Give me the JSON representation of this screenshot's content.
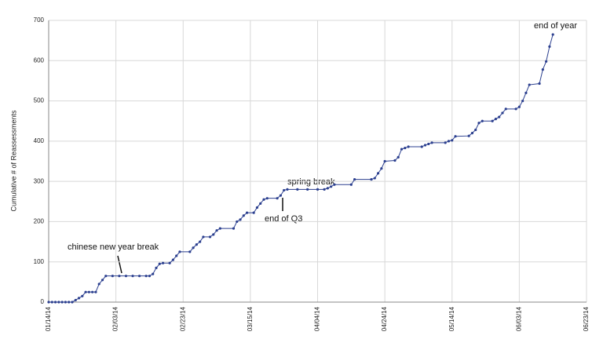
{
  "chart_data": {
    "type": "line",
    "y_label": "Cumulative # of Reassessments",
    "x": [
      "01/14/14",
      "01/15/14",
      "01/16/14",
      "01/17/14",
      "01/18/14",
      "01/19/14",
      "01/20/14",
      "01/21/14",
      "01/22/14",
      "01/23/14",
      "01/24/14",
      "01/25/14",
      "01/26/14",
      "01/27/14",
      "01/28/14",
      "01/29/14",
      "01/30/14",
      "01/31/14",
      "02/02/14",
      "02/04/14",
      "02/06/14",
      "02/08/14",
      "02/10/14",
      "02/12/14",
      "02/13/14",
      "02/14/14",
      "02/15/14",
      "02/16/14",
      "02/17/14",
      "02/19/14",
      "02/20/14",
      "02/21/14",
      "02/22/14",
      "02/25/14",
      "02/26/14",
      "02/27/14",
      "02/28/14",
      "03/01/14",
      "03/03/14",
      "03/04/14",
      "03/05/14",
      "03/06/14",
      "03/10/14",
      "03/11/14",
      "03/12/14",
      "03/13/14",
      "03/14/14",
      "03/16/14",
      "03/17/14",
      "03/18/14",
      "03/19/14",
      "03/20/14",
      "03/23/14",
      "03/24/14",
      "03/25/14",
      "03/26/14",
      "03/29/14",
      "04/01/14",
      "04/04/14",
      "04/06/14",
      "04/07/14",
      "04/08/14",
      "04/09/14",
      "04/14/14",
      "04/15/14",
      "04/20/14",
      "04/21/14",
      "04/22/14",
      "04/23/14",
      "04/24/14",
      "04/27/14",
      "04/28/14",
      "04/29/14",
      "04/30/14",
      "05/01/14",
      "05/05/14",
      "05/06/14",
      "05/07/14",
      "05/08/14",
      "05/12/14",
      "05/13/14",
      "05/14/14",
      "05/15/14",
      "05/19/14",
      "05/20/14",
      "05/21/14",
      "05/22/14",
      "05/23/14",
      "05/26/14",
      "05/27/14",
      "05/28/14",
      "05/29/14",
      "05/30/14",
      "06/02/14",
      "06/03/14",
      "06/04/14",
      "06/05/14",
      "06/06/14",
      "06/09/14",
      "06/10/14",
      "06/11/14",
      "06/12/14",
      "06/13/14"
    ],
    "series": [
      {
        "color": "#2b3f8f",
        "values": [
          0,
          0,
          0,
          0,
          0,
          0,
          0,
          0,
          5,
          10,
          15,
          25,
          25,
          25,
          25,
          45,
          55,
          65,
          65,
          65,
          65,
          65,
          65,
          65,
          65,
          70,
          85,
          95,
          97,
          97,
          105,
          115,
          125,
          125,
          135,
          143,
          150,
          162,
          162,
          168,
          178,
          183,
          183,
          200,
          205,
          215,
          222,
          222,
          235,
          245,
          255,
          258,
          258,
          265,
          278,
          280,
          280,
          280,
          280,
          280,
          283,
          287,
          292,
          292,
          305,
          305,
          308,
          320,
          332,
          350,
          352,
          360,
          380,
          383,
          386,
          386,
          390,
          393,
          396,
          396,
          400,
          402,
          412,
          413,
          420,
          428,
          445,
          450,
          450,
          455,
          460,
          470,
          480,
          480,
          485,
          500,
          520,
          540,
          543,
          578,
          598,
          635,
          665
        ]
      }
    ],
    "xlim": [
      "01/14/14",
      "06/23/14"
    ],
    "xticks": [
      "01/14/14",
      "02/03/14",
      "02/23/14",
      "03/15/14",
      "04/04/14",
      "04/24/14",
      "05/14/14",
      "06/03/14",
      "06/23/14"
    ],
    "ylim": [
      0,
      700
    ],
    "yticks": [
      0,
      100,
      200,
      300,
      400,
      500,
      600,
      700
    ],
    "grid": true,
    "annotations": [
      "chinese new year break",
      "spring break",
      "end of Q3",
      "end of year"
    ]
  }
}
